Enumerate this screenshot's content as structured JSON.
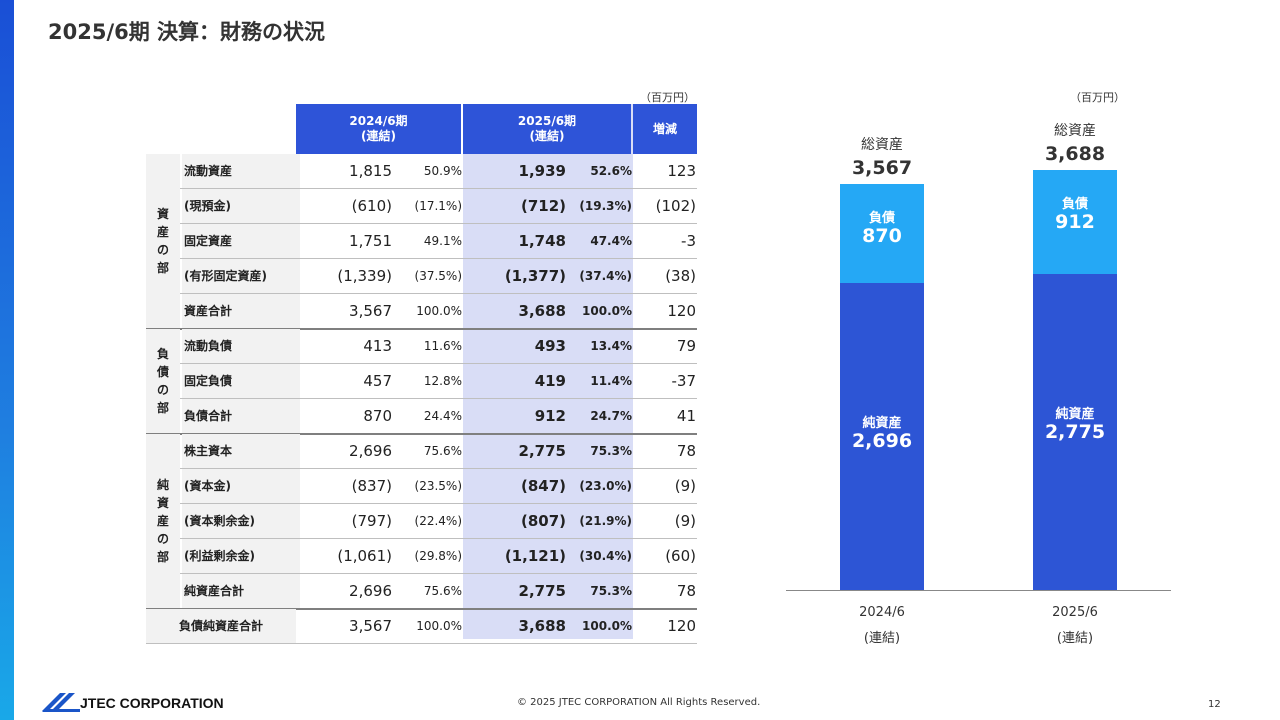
{
  "title": "2025/6期 決算：財務の状況",
  "table": {
    "unit": "（百万円）",
    "headers": {
      "y2024": [
        "2024/6期",
        "(連結)"
      ],
      "y2025": [
        "2025/6期",
        "(連結)"
      ],
      "diff": "増減"
    },
    "sections": [
      {
        "name": [
          "資",
          "産",
          "の",
          "部"
        ],
        "rows": [
          0,
          4
        ]
      },
      {
        "name": [
          "負",
          "債",
          "の",
          "部"
        ],
        "rows": [
          5,
          7
        ]
      },
      {
        "name": [
          "純",
          "資",
          "産",
          "の",
          "部"
        ],
        "rows": [
          8,
          12
        ]
      }
    ],
    "rows": [
      {
        "label": "流動資産",
        "v2024": "1,815",
        "p2024": "50.9%",
        "v2025": "1,939",
        "p2025": "52.6%",
        "diff": "123"
      },
      {
        "label": "(現預金)",
        "v2024": "(610)",
        "p2024": "(17.1%)",
        "v2025": "(712)",
        "p2025": "(19.3%)",
        "diff": "(102)"
      },
      {
        "label": "固定資産",
        "v2024": "1,751",
        "p2024": "49.1%",
        "v2025": "1,748",
        "p2025": "47.4%",
        "diff": "-3"
      },
      {
        "label": "(有形固定資産)",
        "v2024": "(1,339)",
        "p2024": "(37.5%)",
        "v2025": "(1,377)",
        "p2025": "(37.4%)",
        "diff": "(38)"
      },
      {
        "label": "資産合計",
        "v2024": "3,567",
        "p2024": "100.0%",
        "v2025": "3,688",
        "p2025": "100.0%",
        "diff": "120"
      },
      {
        "label": "流動負債",
        "v2024": "413",
        "p2024": "11.6%",
        "v2025": "493",
        "p2025": "13.4%",
        "diff": "79"
      },
      {
        "label": "固定負債",
        "v2024": "457",
        "p2024": "12.8%",
        "v2025": "419",
        "p2025": "11.4%",
        "diff": "-37"
      },
      {
        "label": "負債合計",
        "v2024": "870",
        "p2024": "24.4%",
        "v2025": "912",
        "p2025": "24.7%",
        "diff": "41"
      },
      {
        "label": "株主資本",
        "v2024": "2,696",
        "p2024": "75.6%",
        "v2025": "2,775",
        "p2025": "75.3%",
        "diff": "78"
      },
      {
        "label": "(資本金)",
        "v2024": "(837)",
        "p2024": "(23.5%)",
        "v2025": "(847)",
        "p2025": "(23.0%)",
        "diff": "(9)"
      },
      {
        "label": "(資本剰余金)",
        "v2024": "(797)",
        "p2024": "(22.4%)",
        "v2025": "(807)",
        "p2025": "(21.9%)",
        "diff": "(9)"
      },
      {
        "label": "(利益剰余金)",
        "v2024": "(1,061)",
        "p2024": "(29.8%)",
        "v2025": "(1,121)",
        "p2025": "(30.4%)",
        "diff": "(60)"
      },
      {
        "label": "純資産合計",
        "v2024": "2,696",
        "p2024": "75.6%",
        "v2025": "2,775",
        "p2025": "75.3%",
        "diff": "78"
      },
      {
        "label": "負債純資産合計",
        "v2024": "3,567",
        "p2024": "100.0%",
        "v2025": "3,688",
        "p2025": "100.0%",
        "diff": "120"
      }
    ]
  },
  "chart_data": {
    "type": "bar",
    "stacked": true,
    "unit": "（百万円）",
    "categories": [
      [
        "2024/6",
        "(連結)"
      ],
      [
        "2025/6",
        "(連結)"
      ]
    ],
    "total_label": "総資産",
    "totals": [
      3567,
      3688
    ],
    "series": [
      {
        "name": "純資産",
        "values": [
          2696,
          2775
        ],
        "color": "#2d55d5"
      },
      {
        "name": "負債",
        "values": [
          870,
          912
        ],
        "color": "#25a8f5"
      }
    ]
  },
  "footer": {
    "logo": "JTEC CORPORATION",
    "copyright": "© 2025 JTEC CORPORATION All Rights Reserved.",
    "page": "12"
  },
  "colors": {
    "accent": "#2e54d8",
    "highlight": "#d9ddf6",
    "liability": "#25a8f5",
    "equity": "#2d55d5"
  }
}
